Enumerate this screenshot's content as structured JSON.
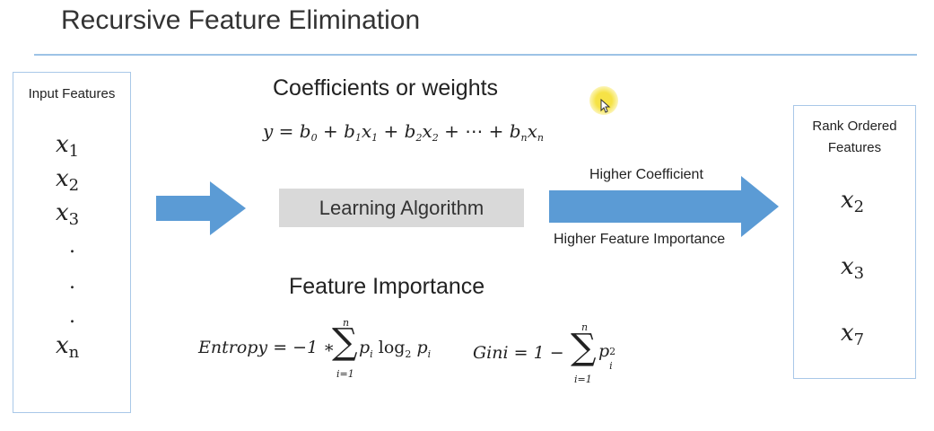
{
  "title": "Recursive Feature Elimination",
  "input_box": {
    "heading": "Input Features",
    "features": [
      {
        "base": "x",
        "sub": "1"
      },
      {
        "base": "x",
        "sub": "2"
      },
      {
        "base": "x",
        "sub": "3"
      }
    ],
    "dots": [
      ".",
      ".",
      "."
    ],
    "last_feature": {
      "base": "x",
      "sub": "n"
    }
  },
  "coefficients": {
    "heading": "Coefficients or weights",
    "equation": {
      "lhs": "y = ",
      "b0": "b",
      "b0_sub": "0",
      "plus1": " + ",
      "b1": "b",
      "b1_sub": "1",
      "x1": "x",
      "x1_sub": "1",
      "plus2": " + ",
      "b2": "b",
      "b2_sub": "2",
      "x2": "x",
      "x2_sub": "2",
      "plus3": " + ⋯ + ",
      "bn": "b",
      "bn_sub": "n",
      "xn": "x",
      "xn_sub": "n"
    }
  },
  "algorithm_label": "Learning Algorithm",
  "arrow": {
    "top_label": "Higher Coefficient",
    "bottom_label": "Higher Feature Importance"
  },
  "feature_importance": {
    "heading": "Feature Importance",
    "entropy": {
      "lhs": "Entropy = −1 ∗",
      "sum_top": "n",
      "sum_symbol": "∑",
      "sum_bottom": "i=1",
      "term_p": "p",
      "term_p_sub": "i",
      "log": " log",
      "log_base": "2",
      "term_p2": " p",
      "term_p2_sub": "i"
    },
    "gini": {
      "lhs": "Gini = 1 −",
      "sum_top": "n",
      "sum_symbol": "∑",
      "sum_bottom": "i=1",
      "term_p": "p",
      "term_p_sub": "i",
      "term_p_sup": "2"
    }
  },
  "output_box": {
    "heading_line1": "Rank Ordered",
    "heading_line2": "Features",
    "features": [
      {
        "base": "x",
        "sub": "2"
      },
      {
        "base": "x",
        "sub": "3"
      },
      {
        "base": "x",
        "sub": "7"
      }
    ]
  },
  "colors": {
    "arrow": "#5b9bd5",
    "rule": "#9dc3e6",
    "box_border": "#a9c8e8",
    "algo_fill": "#d9d9d9",
    "cursor_highlight": "#f5e13c"
  }
}
